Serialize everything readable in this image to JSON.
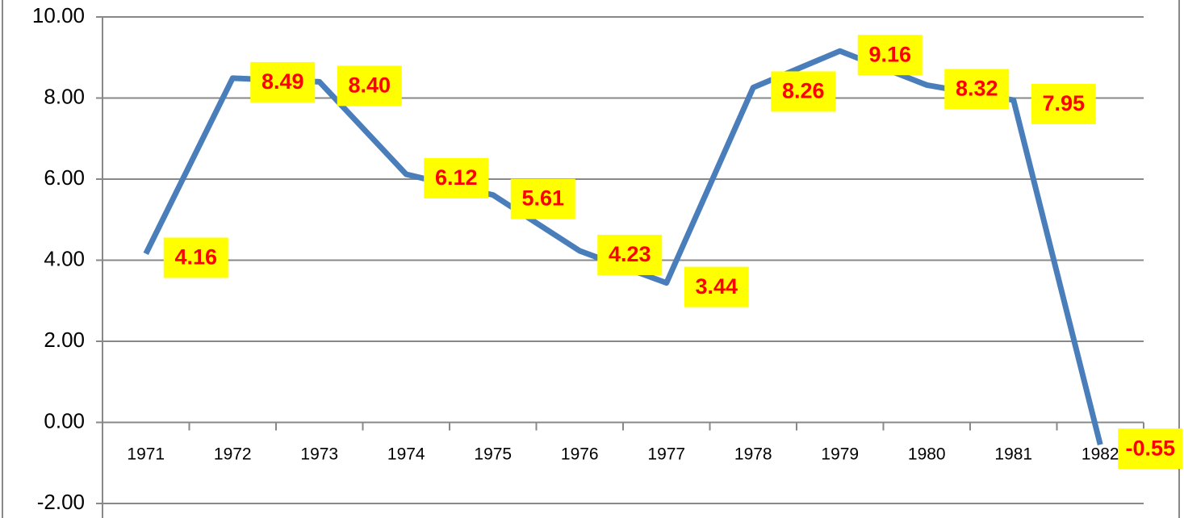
{
  "chart_data": {
    "type": "line",
    "categories": [
      "1971",
      "1972",
      "1973",
      "1974",
      "1975",
      "1976",
      "1977",
      "1978",
      "1979",
      "1980",
      "1981",
      "1982"
    ],
    "series": [
      {
        "color": "#4a7ebb",
        "values": [
          4.16,
          8.49,
          8.4,
          6.12,
          5.61,
          4.23,
          3.44,
          8.26,
          9.16,
          8.32,
          7.95,
          -0.55
        ],
        "value_labels": [
          "4.16",
          "8.49",
          "8.40",
          "6.12",
          "5.61",
          "4.23",
          "3.44",
          "8.26",
          "9.16",
          "8.32",
          "7.95",
          "-0.55"
        ]
      }
    ],
    "ylim": [
      -2,
      10
    ],
    "yticks": [
      {
        "value": -2,
        "label": "-2.00"
      },
      {
        "value": 0,
        "label": "0.00"
      },
      {
        "value": 2,
        "label": "2.00"
      },
      {
        "value": 4,
        "label": "4.00"
      },
      {
        "value": 6,
        "label": "6.00"
      },
      {
        "value": 8,
        "label": "8.00"
      },
      {
        "value": 10,
        "label": "10.00"
      }
    ],
    "grid": true
  }
}
